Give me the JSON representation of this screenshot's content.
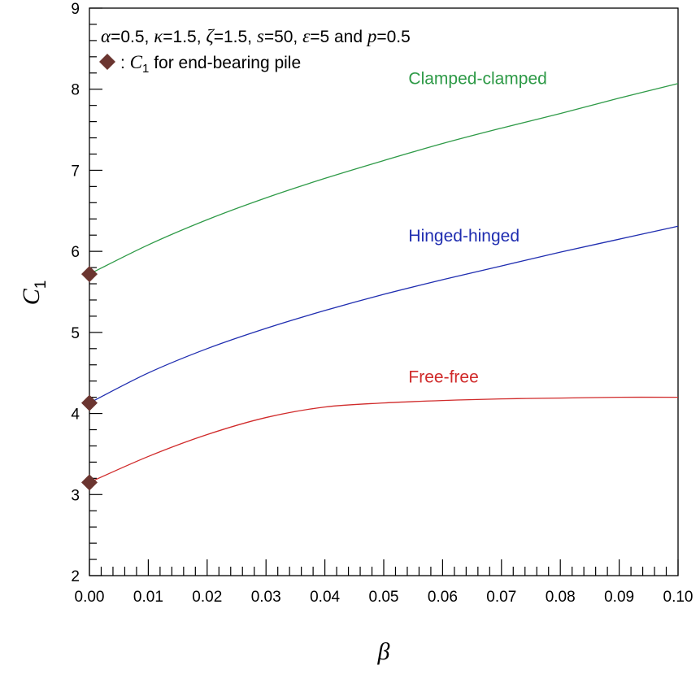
{
  "chart_data": {
    "type": "line",
    "xlabel": "β",
    "ylabel": "C",
    "ylabel_subscript": "1",
    "xlim": [
      0.0,
      0.1
    ],
    "ylim": [
      2,
      9
    ],
    "x_ticks": [
      "0.00",
      "0.01",
      "0.02",
      "0.03",
      "0.04",
      "0.05",
      "0.06",
      "0.07",
      "0.08",
      "0.09",
      "0.10"
    ],
    "y_ticks": [
      "2",
      "3",
      "4",
      "5",
      "6",
      "7",
      "8",
      "9"
    ],
    "parameters": {
      "parts": [
        {
          "sym": "α",
          "val": "=0.5, "
        },
        {
          "sym": "κ",
          "val": "=1.5, "
        },
        {
          "sym": "ζ",
          "val": "=1.5, "
        },
        {
          "sym": "s",
          "val": "=50, "
        },
        {
          "sym": "ε",
          "val": "=5 and "
        },
        {
          "sym": "p",
          "val": "=0.5"
        }
      ]
    },
    "legend": {
      "marker": "diamond",
      "prefix": ": ",
      "symbol": "C",
      "subscript": "1",
      "suffix": " for end-bearing pile",
      "color": "#6b3530"
    },
    "series": [
      {
        "name": "Clamped-clamped",
        "color": "#2e9a47",
        "x": [
          0.0,
          0.01,
          0.02,
          0.03,
          0.04,
          0.05,
          0.06,
          0.07,
          0.08,
          0.09,
          0.1
        ],
        "y": [
          5.72,
          6.08,
          6.39,
          6.66,
          6.9,
          7.12,
          7.33,
          7.52,
          7.7,
          7.89,
          8.07
        ]
      },
      {
        "name": "Hinged-hinged",
        "color": "#1f2db0",
        "x": [
          0.0,
          0.01,
          0.02,
          0.03,
          0.04,
          0.05,
          0.06,
          0.07,
          0.08,
          0.09,
          0.1
        ],
        "y": [
          4.13,
          4.5,
          4.8,
          5.05,
          5.27,
          5.47,
          5.65,
          5.82,
          5.99,
          6.15,
          6.31
        ]
      },
      {
        "name": "Free-free",
        "color": "#d02a2a",
        "x": [
          0.0,
          0.01,
          0.02,
          0.03,
          0.04,
          0.05,
          0.06,
          0.07,
          0.08,
          0.09,
          0.1
        ],
        "y": [
          3.15,
          3.47,
          3.74,
          3.95,
          4.08,
          4.13,
          4.16,
          4.18,
          4.19,
          4.2,
          4.2
        ]
      }
    ],
    "markers": [
      {
        "x": 0.0,
        "y": 5.72
      },
      {
        "x": 0.0,
        "y": 4.13
      },
      {
        "x": 0.0,
        "y": 3.15
      }
    ],
    "grid": false
  }
}
